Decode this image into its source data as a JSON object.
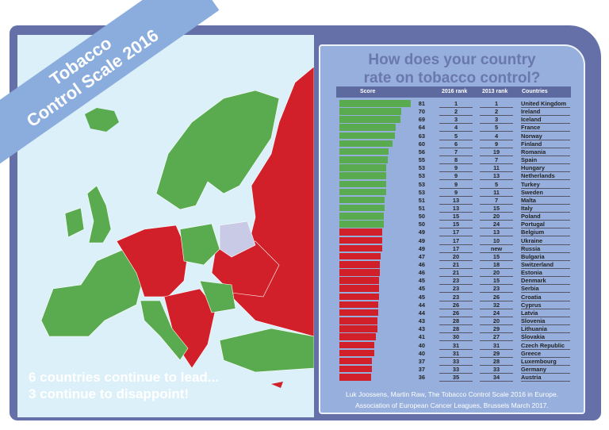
{
  "banner": {
    "line1": "Tobacco",
    "line2": "Control Scale 2016"
  },
  "map": {
    "message_line1": "6 countries continue to lead...",
    "message_line2": "3 continue to disappoint!"
  },
  "colors": {
    "above_50": "#5aab4f",
    "below_50": "#d2202b",
    "no_data": "#c9cbe6",
    "frame": "#6570a9",
    "panel": "#97afdc"
  },
  "panel": {
    "title_line1": "How does your country",
    "title_line2": "rate on tobacco control?",
    "citation_line1": "Luk Joossens, Martin Raw, The Tobacco Control Scale 2016 in Europe.",
    "citation_line2": "Association of European Cancer Leagues, Brussels March 2017."
  },
  "chart_data": {
    "type": "bar",
    "columns": [
      "Score",
      "2016 rank",
      "2013 rank",
      "Countries"
    ],
    "rows": [
      {
        "score": 81,
        "rank2016": "1",
        "rank2013": "1",
        "country": "United Kingdom"
      },
      {
        "score": 70,
        "rank2016": "2",
        "rank2013": "2",
        "country": "Ireland"
      },
      {
        "score": 69,
        "rank2016": "3",
        "rank2013": "3",
        "country": "Iceland"
      },
      {
        "score": 64,
        "rank2016": "4",
        "rank2013": "5",
        "country": "France"
      },
      {
        "score": 63,
        "rank2016": "5",
        "rank2013": "4",
        "country": "Norway"
      },
      {
        "score": 60,
        "rank2016": "6",
        "rank2013": "9",
        "country": "Finland"
      },
      {
        "score": 56,
        "rank2016": "7",
        "rank2013": "19",
        "country": "Romania"
      },
      {
        "score": 55,
        "rank2016": "8",
        "rank2013": "7",
        "country": "Spain"
      },
      {
        "score": 53,
        "rank2016": "9",
        "rank2013": "11",
        "country": "Hungary"
      },
      {
        "score": 53,
        "rank2016": "9",
        "rank2013": "13",
        "country": "Netherlands"
      },
      {
        "score": 53,
        "rank2016": "9",
        "rank2013": "5",
        "country": "Turkey"
      },
      {
        "score": 53,
        "rank2016": "9",
        "rank2013": "11",
        "country": "Sweden"
      },
      {
        "score": 51,
        "rank2016": "13",
        "rank2013": "7",
        "country": "Malta"
      },
      {
        "score": 51,
        "rank2016": "13",
        "rank2013": "15",
        "country": "Italy"
      },
      {
        "score": 50,
        "rank2016": "15",
        "rank2013": "20",
        "country": "Poland"
      },
      {
        "score": 50,
        "rank2016": "15",
        "rank2013": "24",
        "country": "Portugal"
      },
      {
        "score": 49,
        "rank2016": "17",
        "rank2013": "13",
        "country": "Belgium"
      },
      {
        "score": 49,
        "rank2016": "17",
        "rank2013": "10",
        "country": "Ukraine"
      },
      {
        "score": 49,
        "rank2016": "17",
        "rank2013": "new",
        "country": "Russia"
      },
      {
        "score": 47,
        "rank2016": "20",
        "rank2013": "15",
        "country": "Bulgaria"
      },
      {
        "score": 46,
        "rank2016": "21",
        "rank2013": "18",
        "country": "Switzerland"
      },
      {
        "score": 46,
        "rank2016": "21",
        "rank2013": "20",
        "country": "Estonia"
      },
      {
        "score": 45,
        "rank2016": "23",
        "rank2013": "15",
        "country": "Denmark"
      },
      {
        "score": 45,
        "rank2016": "23",
        "rank2013": "23",
        "country": "Serbia"
      },
      {
        "score": 45,
        "rank2016": "23",
        "rank2013": "26",
        "country": "Croatia"
      },
      {
        "score": 44,
        "rank2016": "26",
        "rank2013": "32",
        "country": "Cyprus"
      },
      {
        "score": 44,
        "rank2016": "26",
        "rank2013": "24",
        "country": "Latvia"
      },
      {
        "score": 43,
        "rank2016": "28",
        "rank2013": "20",
        "country": "Slovenia"
      },
      {
        "score": 43,
        "rank2016": "28",
        "rank2013": "29",
        "country": "Lithuania"
      },
      {
        "score": 41,
        "rank2016": "30",
        "rank2013": "27",
        "country": "Slovakia"
      },
      {
        "score": 40,
        "rank2016": "31",
        "rank2013": "31",
        "country": "Czech Republic"
      },
      {
        "score": 40,
        "rank2016": "31",
        "rank2013": "29",
        "country": "Greece"
      },
      {
        "score": 37,
        "rank2016": "33",
        "rank2013": "28",
        "country": "Luxembourg"
      },
      {
        "score": 37,
        "rank2016": "33",
        "rank2013": "33",
        "country": "Germany"
      },
      {
        "score": 36,
        "rank2016": "35",
        "rank2013": "34",
        "country": "Austria"
      }
    ]
  }
}
